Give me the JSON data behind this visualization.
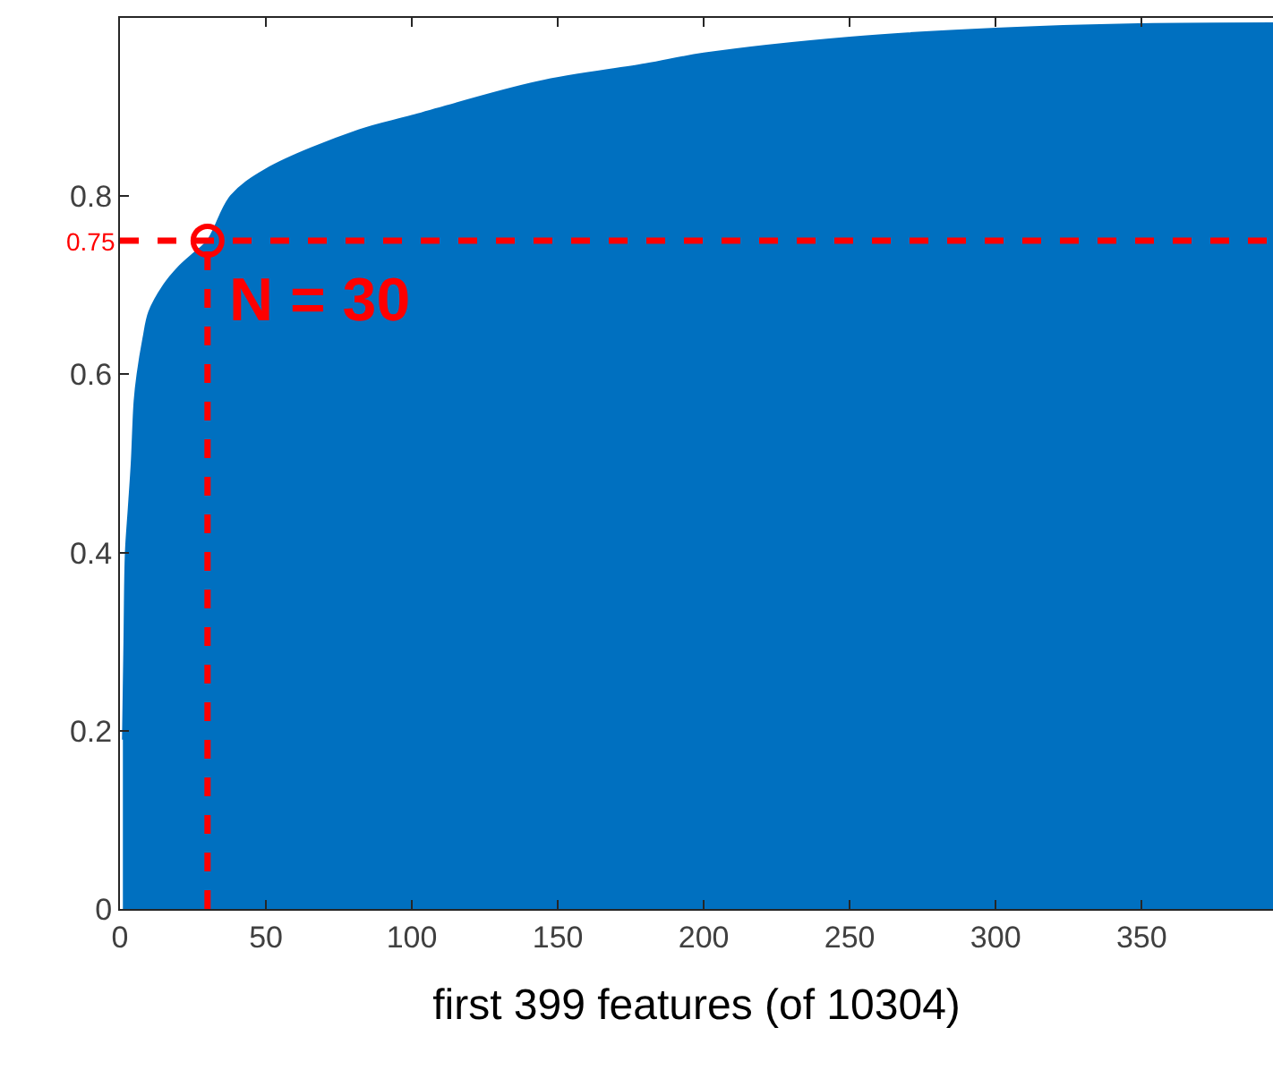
{
  "chart_data": {
    "type": "area",
    "xlabel": "first 399 features (of 10304)",
    "xlim": [
      0,
      395
    ],
    "xticks": [
      0,
      50,
      100,
      150,
      200,
      250,
      300,
      350
    ],
    "ylim": [
      0,
      1
    ],
    "yticks": [
      0,
      0.2,
      0.4,
      0.6,
      0.8
    ],
    "series": [
      {
        "color": "#0070c0",
        "x": [
          1,
          1.5,
          2,
          3,
          4,
          5,
          6,
          8,
          10,
          15,
          20,
          25,
          30,
          38,
          50,
          82,
          100,
          143,
          180,
          200,
          250,
          300,
          350,
          395
        ],
        "values": [
          0.19,
          0.3,
          0.4,
          0.45,
          0.5,
          0.57,
          0.6,
          0.64,
          0.67,
          0.7,
          0.72,
          0.735,
          0.75,
          0.8,
          0.83,
          0.874,
          0.89,
          0.928,
          0.948,
          0.96,
          0.978,
          0.988,
          0.993,
          0.994
        ]
      },
      {
        "type": "scatter",
        "color": "#ff0000",
        "marker": "circle",
        "x": [
          30
        ],
        "values": [
          0.75
        ]
      }
    ],
    "ref_lines": [
      {
        "axis": "y",
        "value": 0.75,
        "label": "0.75",
        "color": "#ff0000",
        "line_style": "dashed"
      },
      {
        "axis": "x",
        "value": 30,
        "label": null,
        "color": "#ff0000",
        "line_style": "dashed"
      }
    ],
    "annotations": [
      "N = 30"
    ]
  }
}
